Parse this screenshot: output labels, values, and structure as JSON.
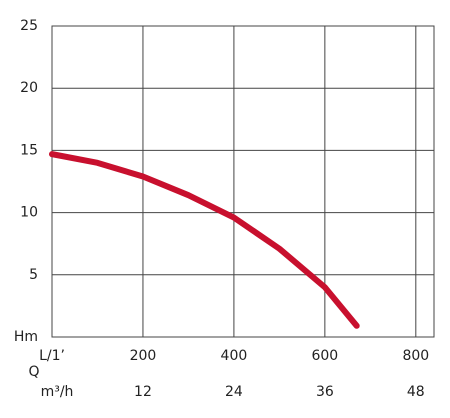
{
  "chart_data": {
    "type": "line",
    "x": [
      0,
      100,
      200,
      300,
      400,
      500,
      600,
      670
    ],
    "series": [
      {
        "color": "#c8102e",
        "values": [
          14.7,
          14.0,
          12.9,
          11.4,
          9.6,
          7.1,
          4.0,
          0.9
        ]
      }
    ],
    "xlim": [
      0,
      840
    ],
    "xticks": [
      {
        "value": 0,
        "label": "L/1’"
      },
      200,
      400,
      600,
      800
    ],
    "ylim": [
      0,
      25
    ],
    "yticks": [
      {
        "value": 0,
        "label": "Hm"
      },
      5,
      10,
      15,
      20,
      25
    ],
    "x2label": "Q",
    "x2unit": "m³/h",
    "x2lim": [
      0,
      50.4
    ],
    "x2ticks": [
      12,
      24,
      36,
      48
    ],
    "grid": true
  }
}
